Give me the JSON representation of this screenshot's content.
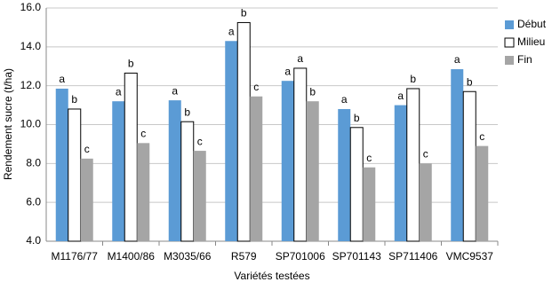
{
  "chart_data": {
    "type": "bar",
    "y_label": "Rendement sucre (t/ha)",
    "x_label": "Variétés testées",
    "categories": [
      "M1176/77",
      "M1400/86",
      "M3035/66",
      "R579",
      "SP701006",
      "SP701143",
      "SP711406",
      "VMC9537"
    ],
    "series": [
      {
        "name": "Début",
        "color": "#5b9bd5",
        "values": [
          11.85,
          11.2,
          11.25,
          14.3,
          12.25,
          10.8,
          11.0,
          12.85
        ],
        "letters": [
          "a",
          "a",
          "a",
          "a",
          "a",
          "a",
          "a",
          "a"
        ]
      },
      {
        "name": "Milieu",
        "color": "#ffffff",
        "values": [
          10.8,
          12.65,
          10.15,
          15.25,
          12.9,
          9.85,
          11.85,
          11.7
        ],
        "letters": [
          "b",
          "b",
          "b",
          "b",
          "a",
          "b",
          "b",
          "b"
        ]
      },
      {
        "name": "Fin",
        "color": "#a5a5a5",
        "values": [
          8.25,
          9.05,
          8.65,
          11.45,
          11.2,
          7.8,
          8.0,
          8.9
        ],
        "letters": [
          "c",
          "c",
          "c",
          "c",
          "b",
          "c",
          "c",
          "c"
        ]
      }
    ],
    "ylim": [
      4,
      16
    ],
    "yticks": [
      {
        "value": 4,
        "label": "4.0"
      },
      {
        "value": 6,
        "label": "6.0"
      },
      {
        "value": 8,
        "label": "8.0"
      },
      {
        "value": 10,
        "label": "10.0"
      },
      {
        "value": 12,
        "label": "12.0"
      },
      {
        "value": 14,
        "label": "14.0"
      },
      {
        "value": 16,
        "label": "16.0"
      }
    ],
    "grid": true,
    "legend": "right"
  }
}
